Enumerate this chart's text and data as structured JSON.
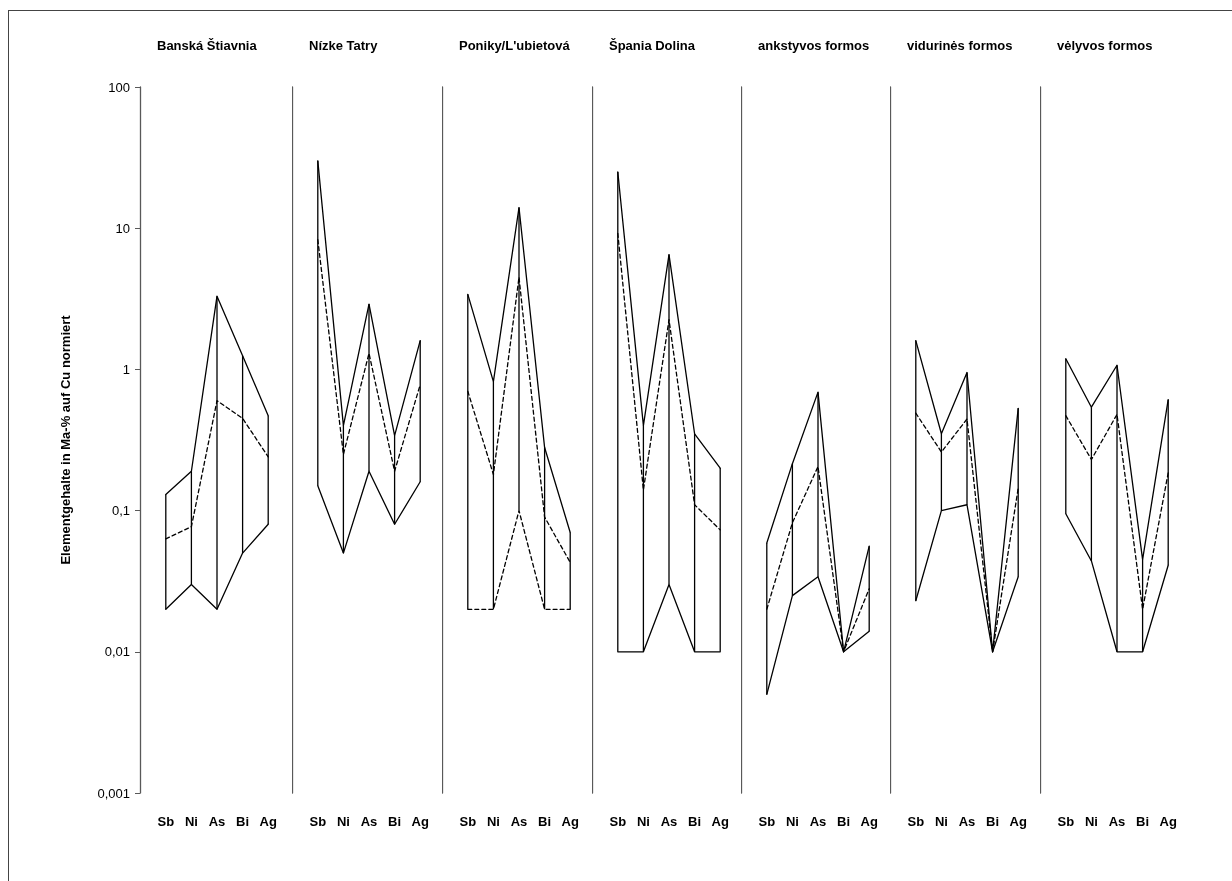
{
  "chart_data": [
    {
      "type": "line",
      "title": "Banská Štiavnia",
      "ylabel": "Elementgehalte in Ma-% auf Cu normiert",
      "categories": [
        "Sb",
        "Ni",
        "As",
        "Bi",
        "Ag"
      ],
      "log": true,
      "marker": "none",
      "ylim": [
        0.001,
        100
      ],
      "yticks": [
        {
          "value": 0.001,
          "label": "0,001"
        },
        {
          "value": 0.01,
          "label": "0,01"
        },
        {
          "value": 0.1,
          "label": "0,1"
        },
        1,
        10,
        100
      ],
      "series": [
        {
          "color": "#000000",
          "line_style": "solid",
          "values": [
            0.13,
            0.19,
            3.3,
            1.25,
            0.47
          ]
        },
        {
          "color": "#000000",
          "line_style": "dashed",
          "values": [
            0.063,
            0.077,
            0.6,
            0.45,
            0.24
          ],
          "errors": [
            [
              0.02,
              0.13
            ],
            [
              0.03,
              0.19
            ],
            [
              0.02,
              3.3
            ],
            [
              0.05,
              1.25
            ],
            [
              0.08,
              0.47
            ]
          ]
        },
        {
          "color": "#000000",
          "line_style": "solid",
          "values": [
            0.02,
            0.03,
            0.02,
            0.05,
            0.08
          ]
        }
      ]
    },
    {
      "type": "line",
      "title": "Nízke Tatry",
      "categories": [
        "Sb",
        "Ni",
        "As",
        "Bi",
        "Ag"
      ],
      "log": true,
      "marker": "none",
      "tick_labels": "x",
      "ylim": [
        0.001,
        100
      ],
      "series": [
        {
          "color": "#000000",
          "line_style": "solid",
          "values": [
            30,
            0.4,
            2.9,
            0.34,
            1.6
          ]
        },
        {
          "color": "#000000",
          "line_style": "dashed",
          "values": [
            8.3,
            0.25,
            1.3,
            0.19,
            0.78
          ],
          "errors": [
            [
              0.15,
              30
            ],
            [
              0.05,
              0.4
            ],
            [
              0.19,
              2.9
            ],
            [
              0.08,
              0.34
            ],
            [
              0.16,
              1.6
            ]
          ]
        },
        {
          "color": "#000000",
          "line_style": "solid",
          "values": [
            0.15,
            0.05,
            0.19,
            0.08,
            0.16
          ]
        }
      ]
    },
    {
      "type": "line",
      "title": "Poniky/L'ubietová",
      "categories": [
        "Sb",
        "Ni",
        "As",
        "Bi",
        "Ag"
      ],
      "log": true,
      "marker": "none",
      "tick_labels": "x",
      "ylim": [
        0.001,
        100
      ],
      "series": [
        {
          "color": "#000000",
          "line_style": "solid",
          "values": [
            3.4,
            0.82,
            14,
            0.28,
            0.07
          ]
        },
        {
          "color": "#000000",
          "line_style": "dashed",
          "values": [
            0.7,
            0.18,
            4.5,
            0.09,
            0.043
          ],
          "errors": [
            [
              0.02,
              3.4
            ],
            [
              0.02,
              0.82
            ],
            [
              0.1,
              14
            ],
            [
              0.02,
              0.28
            ],
            [
              0.02,
              0.07
            ]
          ]
        },
        {
          "color": "#000000",
          "line_style": "dashed",
          "values": [
            0.02,
            0.02,
            0.1,
            0.02,
            0.02
          ]
        }
      ]
    },
    {
      "type": "line",
      "title": "Špania Dolina",
      "categories": [
        "Sb",
        "Ni",
        "As",
        "Bi",
        "Ag"
      ],
      "log": true,
      "marker": "none",
      "tick_labels": "x",
      "ylim": [
        0.001,
        100
      ],
      "series": [
        {
          "color": "#000000",
          "line_style": "solid",
          "values": [
            25,
            0.4,
            6.5,
            0.35,
            0.2
          ]
        },
        {
          "color": "#000000",
          "line_style": "dashed",
          "values": [
            9.2,
            0.14,
            2.25,
            0.11,
            0.073
          ],
          "errors": [
            [
              0.01,
              25
            ],
            [
              0.01,
              0.4
            ],
            [
              0.03,
              6.5
            ],
            [
              0.01,
              0.35
            ],
            [
              0.01,
              0.2
            ]
          ]
        },
        {
          "color": "#000000",
          "line_style": "solid",
          "values": [
            0.01,
            0.01,
            0.03,
            0.01,
            0.01
          ]
        }
      ]
    },
    {
      "type": "line",
      "title": "ankstyvos formos",
      "categories": [
        "Sb",
        "Ni",
        "As",
        "Bi",
        "Ag"
      ],
      "log": true,
      "marker": "none",
      "tick_labels": "x",
      "ylim": [
        0.001,
        100
      ],
      "series": [
        {
          "color": "#000000",
          "line_style": "solid",
          "values": [
            0.059,
            0.215,
            0.69,
            0.01,
            0.056
          ]
        },
        {
          "color": "#000000",
          "line_style": "dashed",
          "values": [
            0.02,
            0.082,
            0.205,
            0.01,
            0.028
          ],
          "errors": [
            [
              0.005,
              0.059
            ],
            [
              0.025,
              0.215
            ],
            [
              0.034,
              0.69
            ],
            null,
            [
              0.014,
              0.056
            ]
          ]
        },
        {
          "color": "#000000",
          "line_style": "solid",
          "values": [
            0.005,
            0.025,
            0.034,
            0.01,
            0.014
          ]
        }
      ]
    },
    {
      "type": "line",
      "title": "vidurinės formos",
      "categories": [
        "Sb",
        "Ni",
        "As",
        "Bi",
        "Ag"
      ],
      "log": true,
      "marker": "none",
      "tick_labels": "x",
      "ylim": [
        0.001,
        100
      ],
      "series": [
        {
          "color": "#000000",
          "line_style": "solid",
          "values": [
            1.6,
            0.35,
            0.95,
            0.01,
            0.53
          ]
        },
        {
          "color": "#000000",
          "line_style": "dashed",
          "values": [
            0.49,
            0.26,
            0.445,
            0.01,
            0.144
          ],
          "errors": [
            [
              0.023,
              1.6
            ],
            [
              0.1,
              0.35
            ],
            [
              0.11,
              0.95
            ],
            null,
            [
              0.034,
              0.53
            ]
          ]
        },
        {
          "color": "#000000",
          "line_style": "solid",
          "values": [
            0.023,
            0.1,
            0.11,
            0.01,
            0.034
          ]
        }
      ]
    },
    {
      "type": "line",
      "title": "vėlyvos formos",
      "categories": [
        "Sb",
        "Ni",
        "As",
        "Bi",
        "Ag"
      ],
      "log": true,
      "marker": "none",
      "tick_labels": "x",
      "ylim": [
        0.001,
        100
      ],
      "series": [
        {
          "color": "#000000",
          "line_style": "solid",
          "values": [
            1.19,
            0.54,
            1.07,
            0.045,
            0.61
          ]
        },
        {
          "color": "#000000",
          "line_style": "dashed",
          "values": [
            0.47,
            0.23,
            0.48,
            0.02,
            0.185
          ],
          "errors": [
            [
              0.095,
              1.19
            ],
            [
              0.044,
              0.54
            ],
            [
              0.01,
              1.07
            ],
            [
              0.01,
              0.045
            ],
            [
              0.041,
              0.61
            ]
          ]
        },
        {
          "color": "#000000",
          "line_style": "solid",
          "values": [
            0.095,
            0.044,
            0.01,
            0.01,
            0.041
          ]
        }
      ]
    }
  ]
}
